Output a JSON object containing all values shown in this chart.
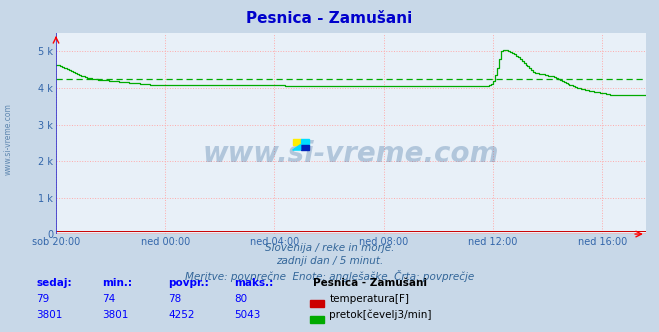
{
  "title": "Pesnica - Zamušani",
  "title_color": "#0000cc",
  "title_fontsize": 11,
  "bg_color": "#c8d8e8",
  "plot_bg_color": "#e8f0f8",
  "grid_color": "#ffaaaa",
  "ylabel_left": "",
  "xlabel": "",
  "x_tick_labels": [
    "sob 20:00",
    "ned 00:00",
    "ned 04:00",
    "ned 08:00",
    "ned 12:00",
    "ned 16:00"
  ],
  "x_tick_positions": [
    0,
    240,
    480,
    720,
    960,
    1200
  ],
  "yticks": [
    0,
    1000,
    2000,
    3000,
    4000,
    5000
  ],
  "ytick_labels": [
    "0",
    "1 k",
    "2 k",
    "3 k",
    "4 k",
    "5 k"
  ],
  "ylim": [
    0,
    5500
  ],
  "xlim": [
    0,
    1296
  ],
  "avg_line_value": 4252,
  "avg_line_color": "#00aa00",
  "flow_color": "#00aa00",
  "temp_color": "#cc0000",
  "temp_value": 79,
  "watermark": "www.si-vreme.com",
  "watermark_color": "#336699",
  "watermark_alpha": 0.3,
  "side_label": "www.si-vreme.com",
  "subtitle1": "Slovenija / reke in morje.",
  "subtitle2": "zadnji dan / 5 minut.",
  "subtitle3": "Meritve: povprečne  Enote: anglešaške  Črta: povprečje",
  "subtitle_color": "#336699",
  "legend_title": "Pesnica - Zamušani",
  "legend_items": [
    {
      "label": "temperatura[F]",
      "color": "#cc0000"
    },
    {
      "label": "pretok[čevelj3/min]",
      "color": "#00aa00"
    }
  ],
  "table_headers": [
    "sedaj:",
    "min.:",
    "povpr.:",
    "maks.:"
  ],
  "table_row1": [
    "79",
    "74",
    "78",
    "80"
  ],
  "table_row2": [
    "3801",
    "3801",
    "4252",
    "5043"
  ],
  "flow_data": [
    4640,
    4620,
    4600,
    4580,
    4560,
    4540,
    4510,
    4490,
    4460,
    4430,
    4400,
    4380,
    4360,
    4340,
    4320,
    4300,
    4280,
    4270,
    4260,
    4250,
    4240,
    4235,
    4230,
    4225,
    4220,
    4215,
    4210,
    4205,
    4200,
    4195,
    4190,
    4185,
    4180,
    4175,
    4170,
    4165,
    4160,
    4155,
    4150,
    4145,
    4140,
    4135,
    4130,
    4125,
    4120,
    4115,
    4110,
    4105,
    4100,
    4095,
    4090,
    4085,
    4080,
    4080,
    4080,
    4080,
    4080,
    4080,
    4080,
    4080,
    4080,
    4080,
    4080,
    4080,
    4080,
    4080,
    4080,
    4080,
    4080,
    4080,
    4080,
    4080,
    4080,
    4080,
    4080,
    4080,
    4080,
    4080,
    4080,
    4080,
    4080,
    4080,
    4080,
    4080,
    4080,
    4080,
    4080,
    4080,
    4080,
    4080,
    4080,
    4080,
    4080,
    4080,
    4080,
    4080,
    4080,
    4080,
    4080,
    4080,
    4075,
    4070,
    4070,
    4070,
    4070,
    4070,
    4070,
    4070,
    4070,
    4070,
    4070,
    4070,
    4070,
    4070,
    4070,
    4070,
    4070,
    4070,
    4070,
    4070,
    4065,
    4060,
    4060,
    4060,
    4060,
    4060,
    4060,
    4060,
    4060,
    4060,
    4060,
    4060,
    4060,
    4060,
    4060,
    4060,
    4060,
    4060,
    4060,
    4060,
    4060,
    4060,
    4060,
    4060,
    4060,
    4060,
    4060,
    4060,
    4060,
    4060,
    4060,
    4060,
    4060,
    4060,
    4060,
    4060,
    4060,
    4060,
    4060,
    4060,
    4060,
    4060,
    4060,
    4060,
    4060,
    4060,
    4060,
    4060,
    4060,
    4060,
    4060,
    4060,
    4060,
    4060,
    4060,
    4060,
    4060,
    4060,
    4060,
    4060,
    4060,
    4060,
    4060,
    4060,
    4060,
    4060,
    4060,
    4060,
    4060,
    4060,
    4060,
    4060,
    4060,
    4060,
    4060,
    4060,
    4060,
    4060,
    4060,
    4060,
    4060,
    4060,
    4060,
    4060,
    4060,
    4060,
    4060,
    4060,
    4060,
    4060,
    4060,
    4060,
    4060,
    4060,
    4060,
    4060,
    4060,
    4060,
    4060,
    4060,
    4060,
    4060,
    4060,
    4060,
    4060,
    4060,
    4065,
    4080,
    4120,
    4200,
    4350,
    4550,
    4800,
    5000,
    5040,
    5043,
    5040,
    5020,
    4990,
    4960,
    4920,
    4880,
    4840,
    4790,
    4740,
    4690,
    4640,
    4590,
    4540,
    4490,
    4450,
    4420,
    4400,
    4390,
    4380,
    4370,
    4360,
    4350,
    4340,
    4330,
    4320,
    4300,
    4280,
    4250,
    4220,
    4190,
    4160,
    4130,
    4110,
    4090,
    4070,
    4050,
    4030,
    4010,
    3990,
    3970,
    3960,
    3950,
    3940,
    3930,
    3920,
    3910,
    3900,
    3890,
    3880,
    3870,
    3860,
    3850,
    3840,
    3830,
    3820,
    3810,
    3800,
    3800,
    3800,
    3800,
    3800,
    3800,
    3800,
    3800,
    3800,
    3800,
    3800,
    3800,
    3800,
    3800,
    3800,
    3800,
    3800,
    3800
  ]
}
